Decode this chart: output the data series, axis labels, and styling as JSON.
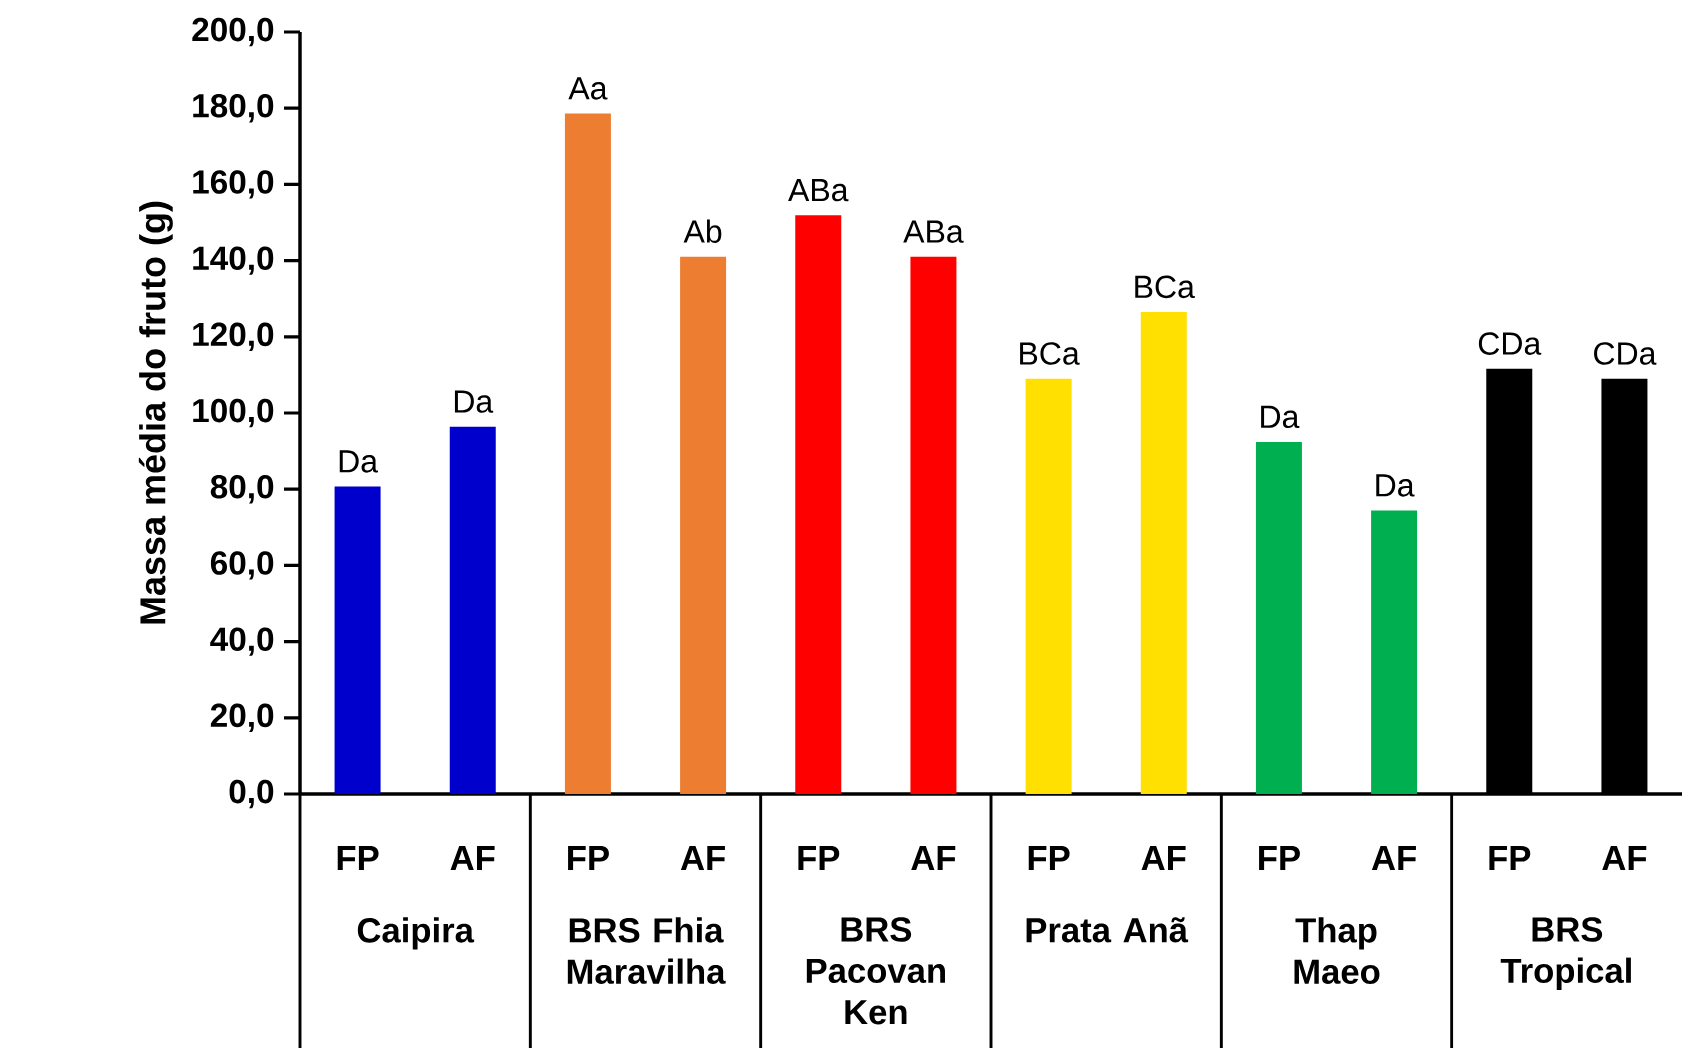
{
  "chart_data": {
    "type": "bar",
    "ylabel": "Massa média do fruto (g)",
    "categories": [
      "FP",
      "AF",
      "FP",
      "AF",
      "FP",
      "AF",
      "FP",
      "AF",
      "FP",
      "AF",
      "FP",
      "AF"
    ],
    "values": [
      80.7,
      96.4,
      178.6,
      141.0,
      151.9,
      141.0,
      109.0,
      126.5,
      92.4,
      74.4,
      111.6,
      109.0
    ],
    "colors": [
      "#0000cc",
      "#0000cc",
      "#ed7d31",
      "#ed7d31",
      "#ff0000",
      "#ff0000",
      "#ffe000",
      "#ffe000",
      "#00b050",
      "#00b050",
      "#000000",
      "#000000"
    ],
    "value_labels": [
      "Da",
      "Da",
      "Aa",
      "Ab",
      "ABa",
      "ABa",
      "BCa",
      "BCa",
      "Da",
      "Da",
      "CDa",
      "CDa"
    ],
    "annotations": [
      "Caipira",
      "BRS Fhia Maravilha",
      "BRS Pacovan Ken",
      "Prata Anã",
      "Thap Maeo",
      "BRS Tropical"
    ],
    "ylim": [
      0,
      200
    ],
    "yticks": [
      {
        "value": 0,
        "label": "0,0"
      },
      {
        "value": 20,
        "label": "20,0"
      },
      {
        "value": 40,
        "label": "40,0"
      },
      {
        "value": 60,
        "label": "60,0"
      },
      {
        "value": 80,
        "label": "80,0"
      },
      {
        "value": 100,
        "label": "100,0"
      },
      {
        "value": 120,
        "label": "120,0"
      },
      {
        "value": 140,
        "label": "140,0"
      },
      {
        "value": 160,
        "label": "160,0"
      },
      {
        "value": 180,
        "label": "180,0"
      },
      {
        "value": 200,
        "label": "200,0"
      }
    ]
  }
}
